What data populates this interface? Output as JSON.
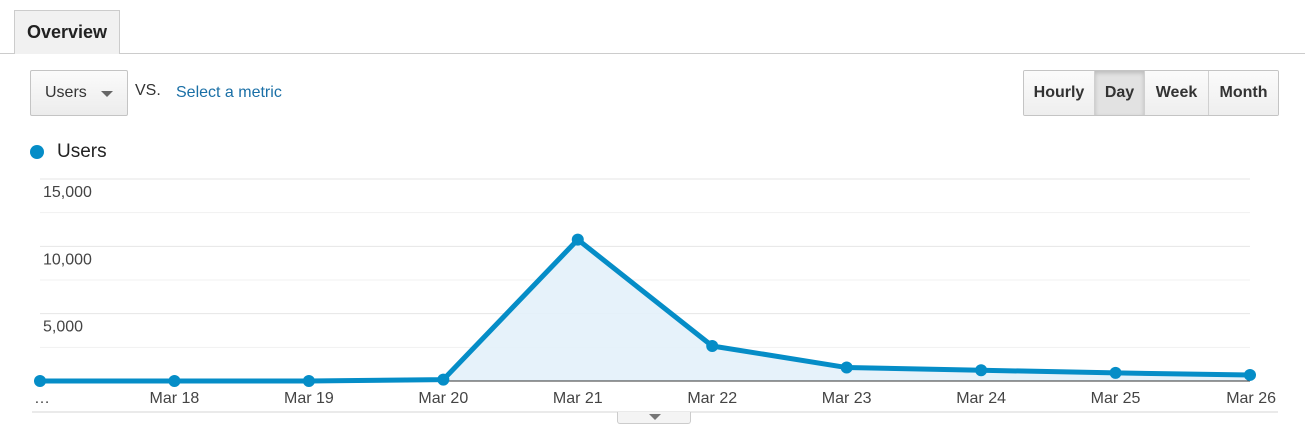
{
  "tabs": [
    {
      "label": "Overview"
    }
  ],
  "metric_selector": {
    "value": "Users"
  },
  "vs_label": "VS.",
  "select_metric_link": "Select a metric",
  "period_buttons": [
    "Hourly",
    "Day",
    "Week",
    "Month"
  ],
  "active_period": "Day",
  "legend": {
    "label": "Users"
  },
  "colors": {
    "series": "#058dc7",
    "fill": "#e3f1f9",
    "link": "#1a6fa6"
  },
  "icons": {
    "metric_dropdown": "caret-down-icon",
    "expand": "caret-down-icon"
  },
  "chart_data": {
    "type": "area",
    "series": [
      {
        "name": "Users",
        "x": [
          "…",
          "Mar 18",
          "Mar 19",
          "Mar 20",
          "Mar 21",
          "Mar 22",
          "Mar 23",
          "Mar 24",
          "Mar 25",
          "Mar 26"
        ],
        "values": [
          0,
          0,
          0,
          100,
          10500,
          2600,
          1000,
          800,
          600,
          450
        ]
      }
    ],
    "y_ticks": [
      "15,000",
      "10,000",
      "5,000"
    ],
    "y_tick_values": [
      15000,
      10000,
      5000
    ],
    "ylim": [
      0,
      15000
    ],
    "grid": true,
    "legend_position": "top-left"
  }
}
